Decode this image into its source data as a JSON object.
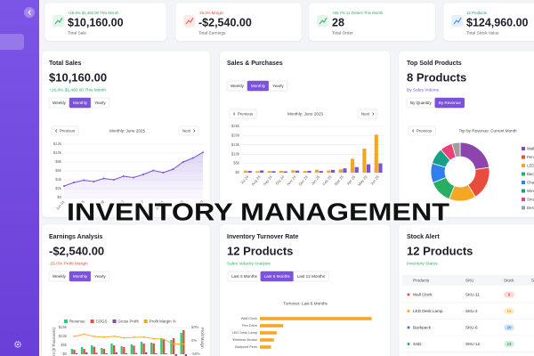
{
  "kpis": [
    {
      "change": "+16.8% $1,460.00 This Month",
      "value": "$10,160.00",
      "label": "Total Sale",
      "color": "#27ae60",
      "icon_color": "#27ae60"
    },
    {
      "change": "-25.0% Margin",
      "value": "-$2,540.00",
      "label": "Total Earnings",
      "color": "#e74c3c",
      "icon_color": "#e74c3c"
    },
    {
      "change": "+66.7% 11 Orders This Month",
      "value": "28",
      "label": "Total Order",
      "color": "#27ae60",
      "icon_color": "#27ae60"
    },
    {
      "change": "12 Products",
      "value": "$124,960.00",
      "label": "Total Stock Value",
      "color": "#16a085",
      "icon_color": "#2f80ed"
    }
  ],
  "cards": {
    "total_sales": {
      "title": "Total Sales",
      "value": "$10,160.00",
      "subtitle": "+16.8% $1,460.00 This Month",
      "subtitle_color": "#27ae60",
      "tabs": [
        "Weekly",
        "Monthly",
        "Yearly"
      ],
      "active_tab": 1,
      "prev": "Previous",
      "period": "Monthly: June 2025",
      "next": "Next"
    },
    "sales_purchases": {
      "title": "Sales & Purchases",
      "tabs": [
        "Weekly",
        "Monthly",
        "Yearly"
      ],
      "active_tab": 1,
      "prev": "Previous",
      "period": "Monthly: June 2025",
      "next": "Next"
    },
    "top_sold": {
      "title": "Top Sold Products",
      "value": "8 Products",
      "subtitle": "By Sales Volume",
      "subtitle_color": "#7b52d9",
      "tabs": [
        "By Quantity",
        "By Revenue"
      ],
      "active_tab": 1,
      "prev": "Previous",
      "period": "Top by Revenue: Current Month"
    },
    "earnings": {
      "title": "Earnings Analysis",
      "value": "-$2,540.00",
      "subtitle": "-25.0% Profit Margin",
      "subtitle_color": "#e74c3c",
      "tabs": [
        "Weekly",
        "Monthly",
        "Yearly"
      ],
      "active_tab": 1
    },
    "turnover": {
      "title": "Inventory Turnover Rate",
      "value": "12 Products",
      "subtitle": "Sales Velocity Analysis",
      "subtitle_color": "#27ae60",
      "tabs": [
        "Last 3 Months",
        "Last 6 Months",
        "Last 12 Months"
      ],
      "active_tab": 1,
      "period": "Turnover: Last 6 Months"
    },
    "stock": {
      "title": "Stock Alert",
      "value": "12 Products",
      "subtitle": "Inventory Status",
      "subtitle_color": "#27ae60",
      "columns": [
        "Products",
        "SKU",
        "Stock",
        "Status"
      ],
      "rows": [
        {
          "product": "Wall Clock",
          "sku": "SKU-11",
          "stock": 0,
          "color": "#e74c3c"
        },
        {
          "product": "LED Desk Lamp",
          "sku": "SKU-2",
          "stock": 16,
          "color": "#f5a623"
        },
        {
          "product": "Backpack",
          "sku": "SKU-6",
          "stock": 20,
          "color": "#2f80ed"
        },
        {
          "product": "SSD",
          "sku": "SKU-12",
          "stock": 23,
          "color": "#27ae60"
        }
      ]
    }
  },
  "overlay_title": "INVENTORY MANAGEMENT",
  "chart_data": [
    {
      "type": "line",
      "color": "#7b52d9",
      "grid": true,
      "categories": [
        "Jun 01",
        null,
        "Jun 05",
        null,
        "Jun 09",
        null,
        "Jun 13",
        null,
        "Jun 17",
        null,
        "Jun 21",
        null,
        "Jun 25",
        null,
        "Jun 29"
      ],
      "values": [
        2600,
        3400,
        3900,
        3600,
        4300,
        4000,
        4800,
        4500,
        5200,
        6100,
        5600,
        6400,
        8000,
        8900,
        10160
      ],
      "ylim": [
        0,
        12000
      ],
      "yticks": [
        {
          "value": 0,
          "label": "$0"
        },
        {
          "value": 2000,
          "label": "$2k"
        },
        {
          "value": 4000,
          "label": "$4k"
        },
        {
          "value": 6000,
          "label": "$6k"
        },
        {
          "value": 8000,
          "label": "$8k"
        },
        {
          "value": 10000,
          "label": "$10k"
        },
        {
          "value": 12000,
          "label": "$12k"
        }
      ]
    },
    {
      "type": "bar",
      "grid": true,
      "categories": [
        "Jul 24",
        "Aug 24",
        "Sep 24",
        "Oct 24",
        "Nov 24",
        "Dec 24",
        "Jan 25",
        "Feb 25",
        "Mar 25",
        "Apr 25",
        "May 25",
        "Jun 25"
      ],
      "series": [
        {
          "name": "Purchases",
          "color": "#f5a623",
          "values": [
            1100,
            800,
            900,
            1000,
            1300,
            900,
            1600,
            1200,
            1800,
            7500,
            13000,
            20500
          ]
        },
        {
          "name": "Sales",
          "color": "#7b52d9",
          "values": [
            900,
            1200,
            800,
            700,
            1100,
            1000,
            900,
            1500,
            2300,
            3000,
            4500,
            5000
          ]
        }
      ],
      "ylim": [
        0,
        25000
      ],
      "yticks": [
        {
          "value": 0,
          "label": "$0"
        },
        {
          "value": 5000,
          "label": "$5k"
        },
        {
          "value": 10000,
          "label": "$10k"
        },
        {
          "value": 15000,
          "label": "$15k"
        },
        {
          "value": 20000,
          "label": "$20k"
        },
        {
          "value": 25000,
          "label": "$25k"
        }
      ]
    },
    {
      "type": "pie",
      "categories": [
        "Wall Clock",
        "Pen Drive",
        "LED Desk Lamp",
        "Backpack",
        "Charger",
        "Wireless Mouse",
        "Smartwatch",
        "Desk Organizer"
      ],
      "values": [
        2300,
        1900,
        1500,
        1300,
        1100,
        900,
        700,
        460
      ],
      "colors": [
        "#8e44ad",
        "#e74c3c",
        "#f5a623",
        "#27ae60",
        "#2f80ed",
        "#16a085",
        "#ec407a",
        "#9e9e9e"
      ]
    },
    {
      "type": "bar",
      "grid": true,
      "ylabel": "Amount ($ Thousands)",
      "y2label": "Profit Margin",
      "series": [
        {
          "name": "Revenue",
          "color": "#2ecc71",
          "values": [
            3000,
            4000,
            5000,
            3500,
            6000,
            4500,
            5500,
            7000,
            6500,
            9000,
            8000,
            12000
          ]
        },
        {
          "name": "COGS",
          "color": "#e74c3c",
          "values": [
            2500,
            3000,
            4200,
            3000,
            5000,
            4000,
            4800,
            6000,
            6000,
            8500,
            9000,
            13500
          ]
        },
        {
          "name": "Gross Profit",
          "color": "#8e44ad",
          "values": [
            500,
            1000,
            800,
            500,
            1000,
            500,
            700,
            1000,
            500,
            500,
            -1000,
            -1500
          ]
        },
        {
          "name": "Profit Margin %",
          "color": "#f5a623",
          "axis": "y2",
          "values": [
            17,
            25,
            16,
            14,
            17,
            11,
            13,
            14,
            8,
            6,
            -12,
            -12
          ]
        }
      ],
      "ylim": [
        0,
        15000
      ],
      "yticks": [
        {
          "value": 0,
          "label": "$0"
        },
        {
          "value": 5000,
          "label": "$5k"
        },
        {
          "value": 10000,
          "label": "$10k"
        },
        {
          "value": 15000,
          "label": "$15k"
        }
      ],
      "y2lim": [
        -50,
        50
      ],
      "y2ticks": [
        {
          "value": -50,
          "label": "-50%"
        },
        {
          "value": 0,
          "label": "0%"
        },
        {
          "value": 50,
          "label": "50%"
        }
      ]
    },
    {
      "type": "barh",
      "color": "#f5a623",
      "categories": [
        "Wall Clock",
        "Pen Drive",
        "LED Desk Lamp",
        "Wireless Mouse",
        "Ballpoint Pens"
      ],
      "values": [
        12,
        2.5,
        1.8,
        1.5,
        1.2
      ],
      "xlim": [
        0,
        13
      ]
    }
  ]
}
